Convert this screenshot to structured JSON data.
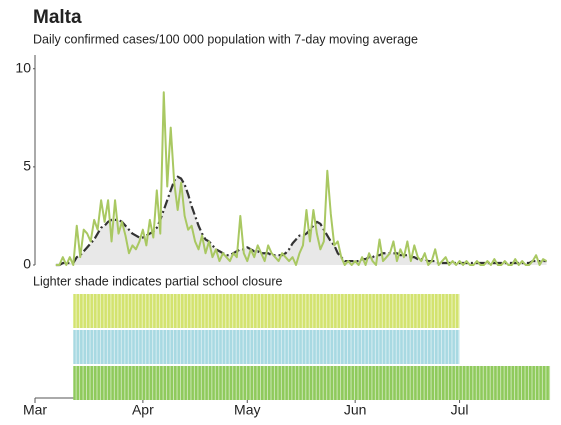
{
  "chart_data": {
    "type": "line",
    "title": "Malta",
    "subtitle": "Daily confirmed cases/100 000 population with 7-day moving average",
    "categories": [
      "Mar",
      null,
      null,
      null,
      null,
      null,
      null,
      null,
      null,
      null,
      null,
      null,
      null,
      null,
      null,
      null,
      null,
      null,
      null,
      null,
      null,
      null,
      null,
      null,
      null,
      null,
      null,
      null,
      null,
      null,
      null,
      "Apr",
      null,
      null,
      null,
      null,
      null,
      null,
      null,
      null,
      null,
      null,
      null,
      null,
      null,
      null,
      null,
      null,
      null,
      null,
      null,
      null,
      null,
      null,
      null,
      null,
      null,
      null,
      null,
      null,
      null,
      "May",
      null,
      null,
      null,
      null,
      null,
      null,
      null,
      null,
      null,
      null,
      null,
      null,
      null,
      null,
      null,
      null,
      null,
      null,
      null,
      null,
      null,
      null,
      null,
      null,
      null,
      null,
      null,
      null,
      null,
      null,
      "Jun",
      null,
      null,
      null,
      null,
      null,
      null,
      null,
      null,
      null,
      null,
      null,
      null,
      null,
      null,
      null,
      null,
      null,
      null,
      null,
      null,
      null,
      null,
      null,
      null,
      null,
      null,
      null,
      null,
      null,
      "Jul",
      null,
      null,
      null,
      null,
      null,
      null,
      null,
      null,
      null,
      null,
      null,
      null,
      null,
      null,
      null,
      null,
      null,
      null,
      null,
      null,
      null,
      null,
      null,
      null,
      null,
      null,
      null
    ],
    "series": [
      {
        "color": "#a9c862",
        "style": "solid",
        "values": [
          null,
          null,
          null,
          null,
          null,
          null,
          0,
          0,
          0.4,
          0,
          0.4,
          0,
          2.0,
          0.4,
          1.8,
          1.6,
          1.2,
          2.3,
          1.8,
          3.3,
          2.2,
          3.3,
          1.2,
          3.3,
          1.6,
          2.2,
          1.5,
          0.6,
          1.0,
          0.8,
          1.2,
          1.8,
          1.0,
          2.3,
          1.4,
          3.8,
          1.6,
          8.8,
          4.0,
          7.0,
          4.2,
          2.8,
          4.2,
          2.5,
          1.8,
          2.0,
          1.2,
          0.8,
          1.5,
          0.6,
          1.2,
          0.4,
          0.8,
          0.2,
          0.6,
          0.4,
          0.2,
          0.6,
          0.4,
          2.5,
          0.6,
          0.2,
          0.8,
          0.4,
          1.0,
          0.6,
          0.2,
          1.0,
          0.6,
          0.4,
          0.2,
          0.6,
          0.4,
          0.2,
          0.4,
          0,
          0.6,
          1.0,
          2.8,
          1.2,
          2.8,
          1.6,
          0.8,
          1.2,
          4.8,
          2.6,
          1.0,
          1.2,
          0.4,
          0,
          0.2,
          0,
          0.2,
          0,
          0.4,
          0,
          0.6,
          0.2,
          0,
          1.3,
          0.2,
          0.4,
          0.6,
          1.2,
          0.2,
          0.8,
          0.4,
          1.2,
          0.2,
          1.0,
          0.4,
          0.2,
          0.6,
          0,
          0.2,
          0.8,
          0,
          0.2,
          0.4,
          0,
          0.2,
          0,
          0.2,
          0,
          0.2,
          0,
          0,
          0.2,
          0,
          0,
          0.2,
          0,
          0.3,
          0,
          0,
          0.2,
          0,
          0,
          0.3,
          0,
          0.2,
          0,
          0,
          0.2,
          0.5,
          0,
          0.3,
          0.2,
          null,
          null
        ]
      },
      {
        "color": "#333333",
        "style": "dashdot",
        "area": "#e8e8e8",
        "values": [
          null,
          null,
          null,
          null,
          null,
          null,
          0,
          0,
          0.1,
          0.1,
          0.1,
          0.1,
          0.4,
          0.5,
          0.7,
          0.9,
          1.1,
          1.3,
          1.6,
          1.9,
          2.0,
          2.2,
          2.3,
          2.3,
          2.3,
          2.2,
          2.0,
          1.8,
          1.6,
          1.5,
          1.4,
          1.4,
          1.5,
          1.6,
          1.7,
          1.9,
          2.3,
          2.8,
          3.3,
          3.8,
          4.3,
          4.5,
          4.4,
          4.1,
          3.6,
          3.0,
          2.5,
          2.0,
          1.6,
          1.3,
          1.2,
          1.0,
          0.8,
          0.7,
          0.6,
          0.5,
          0.5,
          0.6,
          0.7,
          0.8,
          0.8,
          0.9,
          0.8,
          0.7,
          0.7,
          0.6,
          0.6,
          0.6,
          0.5,
          0.5,
          0.5,
          0.5,
          0.6,
          0.8,
          1.1,
          1.3,
          1.5,
          1.5,
          1.6,
          1.8,
          2.0,
          2.2,
          2.1,
          1.8,
          1.5,
          1.2,
          1.0,
          0.6,
          0.4,
          0.2,
          0.2,
          0.2,
          0.2,
          0.2,
          0.3,
          0.3,
          0.4,
          0.4,
          0.5,
          0.5,
          0.6,
          0.6,
          0.6,
          0.6,
          0.6,
          0.5,
          0.5,
          0.5,
          0.4,
          0.4,
          0.3,
          0.3,
          0.3,
          0.2,
          0.2,
          0.2,
          0.1,
          0.1,
          0.1,
          0.1,
          0.1,
          0.1,
          0.1,
          0.1,
          0.1,
          0.1,
          0.1,
          0.1,
          0.1,
          0.1,
          0.1,
          0.1,
          0.1,
          0.1,
          0.1,
          0.1,
          0.1,
          0.1,
          0.1,
          0.1,
          0.1,
          0.1,
          0.1,
          0.2,
          0.2,
          0.2,
          0.2,
          0.2,
          null,
          null
        ]
      }
    ],
    "ylim": [
      0,
      10.7
    ],
    "yticks": [
      0,
      5,
      10
    ],
    "note": "Lighter shade indicates partial school closure",
    "closures": [
      {
        "color": "#d3e36f",
        "start": 11,
        "end": 121
      },
      {
        "color": "#a8d9e2",
        "start": 11,
        "end": 121
      },
      {
        "color": "#8fca5c",
        "start": 11,
        "end": 147
      }
    ]
  }
}
